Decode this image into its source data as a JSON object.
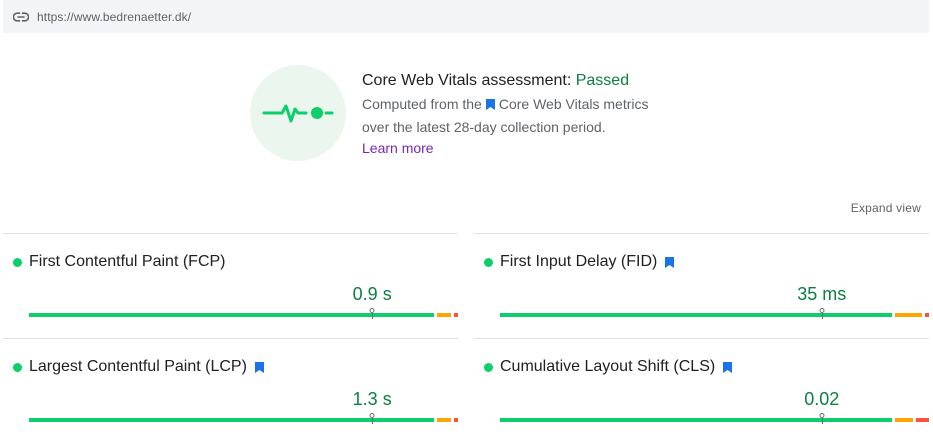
{
  "url_bar": {
    "url": "https://www.bedrenaetter.dk/",
    "icon": "link-icon"
  },
  "assessment": {
    "title_prefix": "Core Web Vitals assessment: ",
    "status": "Passed",
    "desc_line1_a": "Computed from the",
    "desc_line1_b": "Core Web Vitals metrics",
    "desc_line2": "over the latest 28-day collection period.",
    "learn_more": "Learn more",
    "badge_icon": "pulse-icon",
    "status_color": "#0b8043"
  },
  "expand_view": "Expand view",
  "metrics": [
    {
      "name": "First Contentful Paint (FCP)",
      "value": "0.9 s",
      "core": false,
      "marker_fraction": 0.8,
      "good_fraction": 0.95,
      "ni_fraction": 0.04,
      "poor_fraction": 0.01
    },
    {
      "name": "First Input Delay (FID)",
      "value": "35 ms",
      "core": true,
      "marker_fraction": 0.75,
      "good_fraction": 0.92,
      "ni_fraction": 0.07,
      "poor_fraction": 0.01
    },
    {
      "name": "Largest Contentful Paint (LCP)",
      "value": "1.3 s",
      "core": true,
      "marker_fraction": 0.8,
      "good_fraction": 0.95,
      "ni_fraction": 0.04,
      "poor_fraction": 0.01
    },
    {
      "name": "Cumulative Layout Shift (CLS)",
      "value": "0.02",
      "core": true,
      "marker_fraction": 0.75,
      "good_fraction": 0.92,
      "ni_fraction": 0.05,
      "poor_fraction": 0.03
    }
  ],
  "colors": {
    "good": "#0cce6b",
    "needs_improvement": "#ffa400",
    "poor": "#ff4e42",
    "core_flag": "#1a73e8"
  }
}
